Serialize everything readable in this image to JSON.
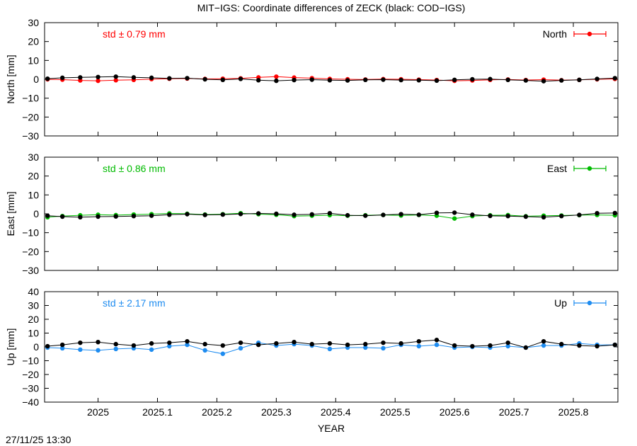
{
  "title": "MIT−IGS: Coordinate differences of ZECK (black: COD−IGS)",
  "timestamp": "27/11/25 13:30",
  "xlabel": "YEAR",
  "x_ticks": [
    "2025",
    "2025.1",
    "2025.2",
    "2025.3",
    "2025.4",
    "2025.5",
    "2025.6",
    "2025.7",
    "2025.8"
  ],
  "chart_data": [
    {
      "type": "scatter",
      "panel": "north",
      "ylabel": "North [mm]",
      "legend": "North",
      "legend_position": "top-right",
      "std_label": "std ± 0.79 mm",
      "color": "#ff0000",
      "ylim": [
        -30,
        30
      ],
      "yticks": [
        -30,
        -20,
        -10,
        0,
        10,
        20,
        30
      ],
      "xlim": [
        2024.91,
        2025.875
      ],
      "grid": false,
      "series": [
        {
          "name": "North",
          "color": "#ff0000",
          "x": [
            2024.915,
            2024.94,
            2024.97,
            2025.0,
            2025.03,
            2025.06,
            2025.09,
            2025.12,
            2025.15,
            2025.18,
            2025.21,
            2025.24,
            2025.27,
            2025.3,
            2025.33,
            2025.36,
            2025.39,
            2025.42,
            2025.45,
            2025.48,
            2025.51,
            2025.54,
            2025.57,
            2025.6,
            2025.63,
            2025.66,
            2025.69,
            2025.72,
            2025.75,
            2025.78,
            2025.81,
            2025.84,
            2025.87
          ],
          "y": [
            0.0,
            -0.2,
            -0.6,
            -0.8,
            -0.5,
            -0.3,
            0.1,
            0.3,
            0.4,
            0.2,
            0.3,
            0.5,
            1.0,
            1.4,
            0.9,
            0.6,
            0.2,
            0.0,
            -0.1,
            0.1,
            0.0,
            -0.2,
            -0.4,
            -0.8,
            -0.6,
            -0.3,
            -0.1,
            -0.4,
            -0.2,
            -0.5,
            -0.3,
            0.0,
            0.2
          ]
        },
        {
          "name": "",
          "color": "#000000",
          "x": [
            2024.915,
            2024.94,
            2024.97,
            2025.0,
            2025.03,
            2025.06,
            2025.09,
            2025.12,
            2025.15,
            2025.18,
            2025.21,
            2025.24,
            2025.27,
            2025.3,
            2025.33,
            2025.36,
            2025.39,
            2025.42,
            2025.45,
            2025.48,
            2025.51,
            2025.54,
            2025.57,
            2025.6,
            2025.63,
            2025.66,
            2025.69,
            2025.72,
            2025.75,
            2025.78,
            2025.81,
            2025.84,
            2025.87
          ],
          "y": [
            0.3,
            0.8,
            1.0,
            1.2,
            1.4,
            1.0,
            0.8,
            0.5,
            0.6,
            0.0,
            -0.3,
            0.2,
            -0.5,
            -0.8,
            -0.4,
            -0.2,
            -0.5,
            -0.6,
            -0.3,
            -0.2,
            -0.4,
            -0.5,
            -0.7,
            -0.3,
            0.0,
            0.1,
            -0.3,
            -0.6,
            -1.0,
            -0.6,
            -0.3,
            0.2,
            0.6
          ]
        }
      ]
    },
    {
      "type": "scatter",
      "panel": "east",
      "ylabel": "East [mm]",
      "legend": "East",
      "legend_position": "top-right",
      "std_label": "std ± 0.86 mm",
      "color": "#00bb00",
      "ylim": [
        -30,
        30
      ],
      "yticks": [
        -30,
        -20,
        -10,
        0,
        10,
        20,
        30
      ],
      "xlim": [
        2024.91,
        2025.875
      ],
      "grid": false,
      "series": [
        {
          "name": "East",
          "color": "#00bb00",
          "x": [
            2024.915,
            2024.94,
            2024.97,
            2025.0,
            2025.03,
            2025.06,
            2025.09,
            2025.12,
            2025.15,
            2025.18,
            2025.21,
            2025.24,
            2025.27,
            2025.3,
            2025.33,
            2025.36,
            2025.39,
            2025.42,
            2025.45,
            2025.48,
            2025.51,
            2025.54,
            2025.57,
            2025.6,
            2025.63,
            2025.66,
            2025.69,
            2025.72,
            2025.75,
            2025.78,
            2025.81,
            2025.84,
            2025.87
          ],
          "y": [
            -1.8,
            -1.2,
            -0.8,
            -0.5,
            -0.7,
            -0.4,
            -0.2,
            0.2,
            0.0,
            -0.4,
            -0.2,
            0.3,
            -0.2,
            -0.5,
            -1.2,
            -1.0,
            -0.7,
            -1.0,
            -0.8,
            -0.6,
            -0.9,
            -0.6,
            -1.0,
            -2.5,
            -1.2,
            -0.8,
            -0.7,
            -1.3,
            -1.0,
            -0.9,
            -0.7,
            -0.6,
            -0.8
          ]
        },
        {
          "name": "",
          "color": "#000000",
          "x": [
            2024.915,
            2024.94,
            2024.97,
            2025.0,
            2025.03,
            2025.06,
            2025.09,
            2025.12,
            2025.15,
            2025.18,
            2025.21,
            2025.24,
            2025.27,
            2025.3,
            2025.33,
            2025.36,
            2025.39,
            2025.42,
            2025.45,
            2025.48,
            2025.51,
            2025.54,
            2025.57,
            2025.6,
            2025.63,
            2025.66,
            2025.69,
            2025.72,
            2025.75,
            2025.78,
            2025.81,
            2025.84,
            2025.87
          ],
          "y": [
            -1.0,
            -1.5,
            -1.8,
            -1.5,
            -1.4,
            -1.2,
            -1.0,
            -0.5,
            -0.2,
            -0.6,
            -0.4,
            -0.1,
            0.2,
            0.0,
            -0.5,
            -0.3,
            0.3,
            -0.8,
            -1.0,
            -0.6,
            -0.2,
            -0.5,
            0.5,
            0.6,
            -0.5,
            -1.1,
            -1.2,
            -1.5,
            -1.8,
            -1.2,
            -0.6,
            0.3,
            0.4
          ]
        }
      ]
    },
    {
      "type": "scatter",
      "panel": "up",
      "ylabel": "Up [mm]",
      "legend": "Up",
      "legend_position": "top-right",
      "std_label": "std ± 2.17 mm",
      "color": "#1e8cf0",
      "ylim": [
        -40,
        40
      ],
      "yticks": [
        -40,
        -30,
        -20,
        -10,
        0,
        10,
        20,
        30,
        40
      ],
      "xlim": [
        2024.91,
        2025.875
      ],
      "grid": false,
      "series": [
        {
          "name": "Up",
          "color": "#1e8cf0",
          "x": [
            2024.915,
            2024.94,
            2024.97,
            2025.0,
            2025.03,
            2025.06,
            2025.09,
            2025.12,
            2025.15,
            2025.18,
            2025.21,
            2025.24,
            2025.27,
            2025.3,
            2025.33,
            2025.36,
            2025.39,
            2025.42,
            2025.45,
            2025.48,
            2025.51,
            2025.54,
            2025.57,
            2025.6,
            2025.63,
            2025.66,
            2025.69,
            2025.72,
            2025.75,
            2025.78,
            2025.81,
            2025.84,
            2025.87
          ],
          "y": [
            -0.5,
            -1.0,
            -2.0,
            -2.5,
            -1.5,
            -1.0,
            -2.0,
            0.5,
            1.5,
            -2.5,
            -5.0,
            -1.0,
            3.0,
            1.0,
            2.0,
            1.0,
            -1.5,
            -0.5,
            -0.5,
            -1.0,
            1.5,
            0.5,
            1.5,
            -0.5,
            0.0,
            -0.5,
            0.5,
            -0.5,
            1.0,
            1.0,
            2.5,
            1.5,
            1.5
          ]
        },
        {
          "name": "",
          "color": "#000000",
          "x": [
            2024.915,
            2024.94,
            2024.97,
            2025.0,
            2025.03,
            2025.06,
            2025.09,
            2025.12,
            2025.15,
            2025.18,
            2025.21,
            2025.24,
            2025.27,
            2025.3,
            2025.33,
            2025.36,
            2025.39,
            2025.42,
            2025.45,
            2025.48,
            2025.51,
            2025.54,
            2025.57,
            2025.6,
            2025.63,
            2025.66,
            2025.69,
            2025.72,
            2025.75,
            2025.78,
            2025.81,
            2025.84,
            2025.87
          ],
          "y": [
            0.5,
            1.5,
            3.0,
            3.5,
            2.0,
            1.0,
            2.5,
            3.0,
            4.0,
            2.0,
            1.0,
            3.0,
            1.5,
            2.5,
            3.5,
            2.0,
            2.5,
            1.5,
            2.0,
            3.0,
            2.5,
            4.0,
            5.0,
            1.0,
            0.5,
            1.0,
            3.0,
            -0.5,
            4.0,
            2.0,
            1.0,
            0.5,
            1.5
          ]
        }
      ]
    }
  ]
}
